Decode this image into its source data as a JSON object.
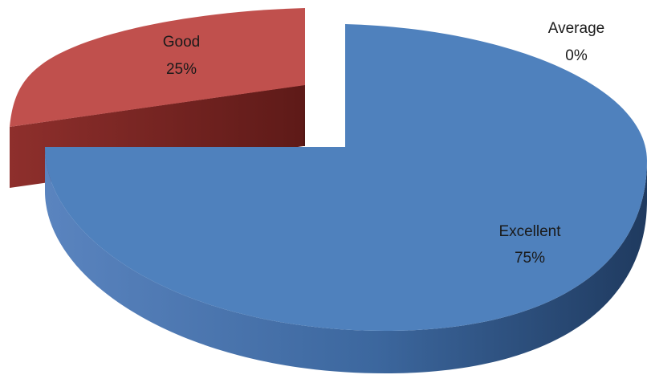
{
  "chart_data": {
    "type": "pie",
    "style": "3d-exploded",
    "slices": [
      {
        "label": "Excellent",
        "value": 75,
        "value_label": "75%",
        "color": "#4f81bd"
      },
      {
        "label": "Good",
        "value": 25,
        "value_label": "25%",
        "color": "#c0504d"
      },
      {
        "label": "Average",
        "value": 0,
        "value_label": "0%",
        "color": "#9bbb59"
      }
    ],
    "title": "",
    "legend": "none"
  }
}
